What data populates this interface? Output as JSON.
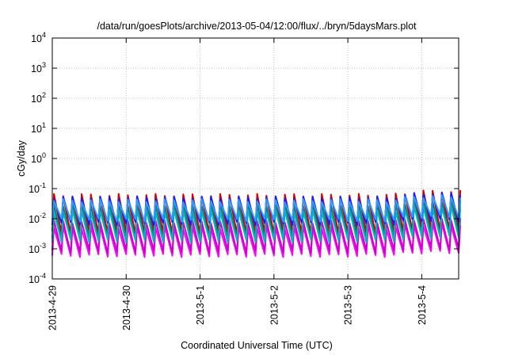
{
  "chart_data": {
    "type": "line",
    "title": "/data/run/goesPlots/archive/2013-05-04/12:00/flux/../bryn/5daysMars.plot",
    "xlabel": "Coordinated Universal Time (UTC)",
    "ylabel": "cGy/day",
    "yscale": "log",
    "ylim": [
      0.0001,
      10000
    ],
    "xlim": [
      "2013-04-29T00:00",
      "2013-05-04T12:00"
    ],
    "grid": true,
    "legend": "none",
    "x_ticks": [
      "2013-4-29",
      "2013-4-30",
      "2013-5-1",
      "2013-5-2",
      "2013-5-3",
      "2013-5-4"
    ],
    "y_ticks": [
      {
        "base": "10",
        "exp": "-4"
      },
      {
        "base": "10",
        "exp": "-3"
      },
      {
        "base": "10",
        "exp": "-2"
      },
      {
        "base": "10",
        "exp": "-1"
      },
      {
        "base": "10",
        "exp": "0"
      },
      {
        "base": "10",
        "exp": "1"
      },
      {
        "base": "10",
        "exp": "2"
      },
      {
        "base": "10",
        "exp": "3"
      },
      {
        "base": "10",
        "exp": "4"
      }
    ],
    "cycle_hours": 3,
    "series": [
      {
        "color": "#ff00ff",
        "peak": [
          0.005,
          0.0064
        ],
        "trough": [
          0.0006,
          0.00078
        ]
      },
      {
        "color": "#cc00cc",
        "peak": [
          0.008,
          0.01
        ],
        "trough": [
          0.0008,
          0.001
        ]
      },
      {
        "color": "#cc0000",
        "peak": [
          0.06,
          0.08
        ],
        "trough": [
          0.0035,
          0.0045
        ]
      },
      {
        "color": "#008080",
        "peak": [
          0.03,
          0.04
        ],
        "trough": [
          0.0022,
          0.003
        ]
      },
      {
        "color": "#00b8b8",
        "peak": [
          0.018,
          0.024
        ],
        "trough": [
          0.0018,
          0.0024
        ]
      },
      {
        "color": "#1a1aff",
        "peak": [
          0.05,
          0.068
        ],
        "trough": [
          0.007,
          0.009
        ]
      },
      {
        "color": "#3399ff",
        "peak": [
          0.04,
          0.055
        ],
        "trough": [
          0.009,
          0.012
        ]
      }
    ]
  }
}
